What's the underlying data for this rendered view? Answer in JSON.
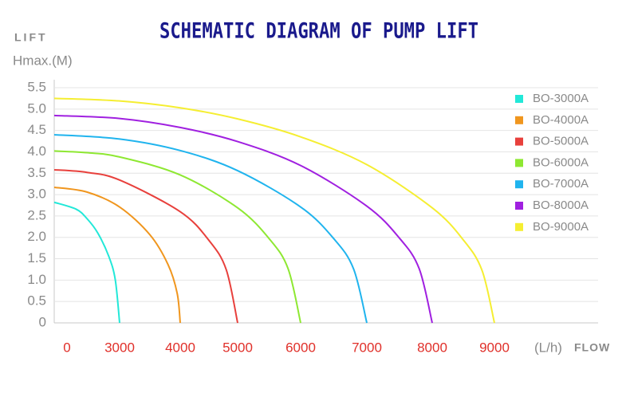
{
  "chart_data": {
    "type": "line",
    "title": "SCHEMATIC DIAGRAM OF PUMP LIFT",
    "y_label": "LIFT",
    "y_unit_label": "Hmax.(M)",
    "x_unit_label": "(L/h)",
    "x_label": "FLOW",
    "grid": true,
    "legend": "right",
    "ylim": [
      0,
      5.5
    ],
    "yticks": [
      0,
      0.5,
      {
        "value": 1,
        "label": "1.0"
      },
      1.5,
      {
        "value": 2,
        "label": "2.0"
      },
      2.5,
      {
        "value": 3,
        "label": "3.0"
      },
      3.5,
      {
        "value": 4,
        "label": "4.0"
      },
      4.5,
      {
        "value": 5,
        "label": "5.0"
      },
      5.5
    ],
    "xlim": [
      0,
      10700
    ],
    "xticks": [
      0,
      3000,
      4000,
      5000,
      6000,
      7000,
      8000,
      9000
    ],
    "series": [
      {
        "name": "BO-3000A",
        "color": "#22e8d8",
        "x": [
          0,
          1000,
          1500,
          2000,
          2500,
          2800,
          3000
        ],
        "values": [
          2.82,
          2.66,
          2.44,
          2.1,
          1.56,
          1.01,
          0
        ]
      },
      {
        "name": "BO-4000A",
        "color": "#f0961e",
        "x": [
          0,
          1500,
          3000,
          3500,
          3800,
          3950,
          4000
        ],
        "values": [
          3.17,
          3.06,
          2.71,
          2.06,
          1.36,
          0.69,
          0
        ]
      },
      {
        "name": "BO-5000A",
        "color": "#e8403c",
        "x": [
          0,
          1500,
          3000,
          4000,
          4500,
          4800,
          5000
        ],
        "values": [
          3.58,
          3.52,
          3.34,
          2.6,
          1.93,
          1.25,
          0
        ]
      },
      {
        "name": "BO-6000A",
        "color": "#8ee832",
        "x": [
          0,
          1500,
          3000,
          4000,
          5000,
          5500,
          5800,
          6000
        ],
        "values": [
          4.02,
          3.98,
          3.88,
          3.46,
          2.69,
          1.97,
          1.27,
          0
        ]
      },
      {
        "name": "BO-7000A",
        "color": "#20b4ee",
        "x": [
          0,
          3000,
          4000,
          5000,
          6000,
          6500,
          6800,
          7000
        ],
        "values": [
          4.4,
          4.3,
          4.03,
          3.56,
          2.71,
          1.97,
          1.26,
          0
        ]
      },
      {
        "name": "BO-8000A",
        "color": "#a020e0",
        "x": [
          0,
          3000,
          4000,
          5000,
          6000,
          7000,
          7500,
          7800,
          8000
        ],
        "values": [
          4.85,
          4.78,
          4.57,
          4.24,
          3.68,
          2.73,
          1.98,
          1.27,
          0
        ]
      },
      {
        "name": "BO-9000A",
        "color": "#f5ee32",
        "x": [
          0,
          3000,
          4000,
          5000,
          6000,
          7000,
          8000,
          8500,
          8800,
          9000
        ],
        "values": [
          5.25,
          5.19,
          5.03,
          4.77,
          4.35,
          3.7,
          2.69,
          1.94,
          1.23,
          0
        ]
      }
    ]
  }
}
